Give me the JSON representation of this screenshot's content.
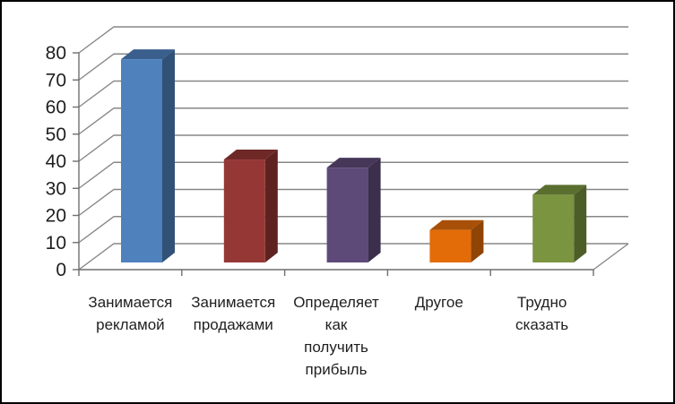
{
  "window": {
    "background": "#ffffff",
    "border_color": "#000000"
  },
  "chart_data": {
    "type": "bar",
    "projection": "3d",
    "title": "",
    "xlabel": "",
    "ylabel": "",
    "legend": "none",
    "categories": [
      "Занимается рекламой",
      "Занимается продажами",
      "Определяет как получить прибыль",
      "Другое",
      "Трудно сказать"
    ],
    "category_label_lines": [
      [
        "Занимается",
        "рекламой"
      ],
      [
        "Занимается",
        "продажами"
      ],
      [
        "Определяет",
        "как",
        "получить",
        "прибыль"
      ],
      [
        "Другое"
      ],
      [
        "Трудно",
        "сказать"
      ]
    ],
    "values": [
      75,
      38,
      35,
      12,
      25
    ],
    "bar_colors": [
      "#4F81BD",
      "#953735",
      "#5E4A78",
      "#E36C09",
      "#7A9440"
    ],
    "ylim": [
      0,
      80
    ],
    "ytick_step": 10,
    "yticks": [
      0,
      10,
      20,
      30,
      40,
      50,
      60,
      70,
      80
    ],
    "grid": true,
    "gridline_color": "#878787",
    "axis_color": "#6f6f6f",
    "text_color": "#1f1f1f"
  }
}
